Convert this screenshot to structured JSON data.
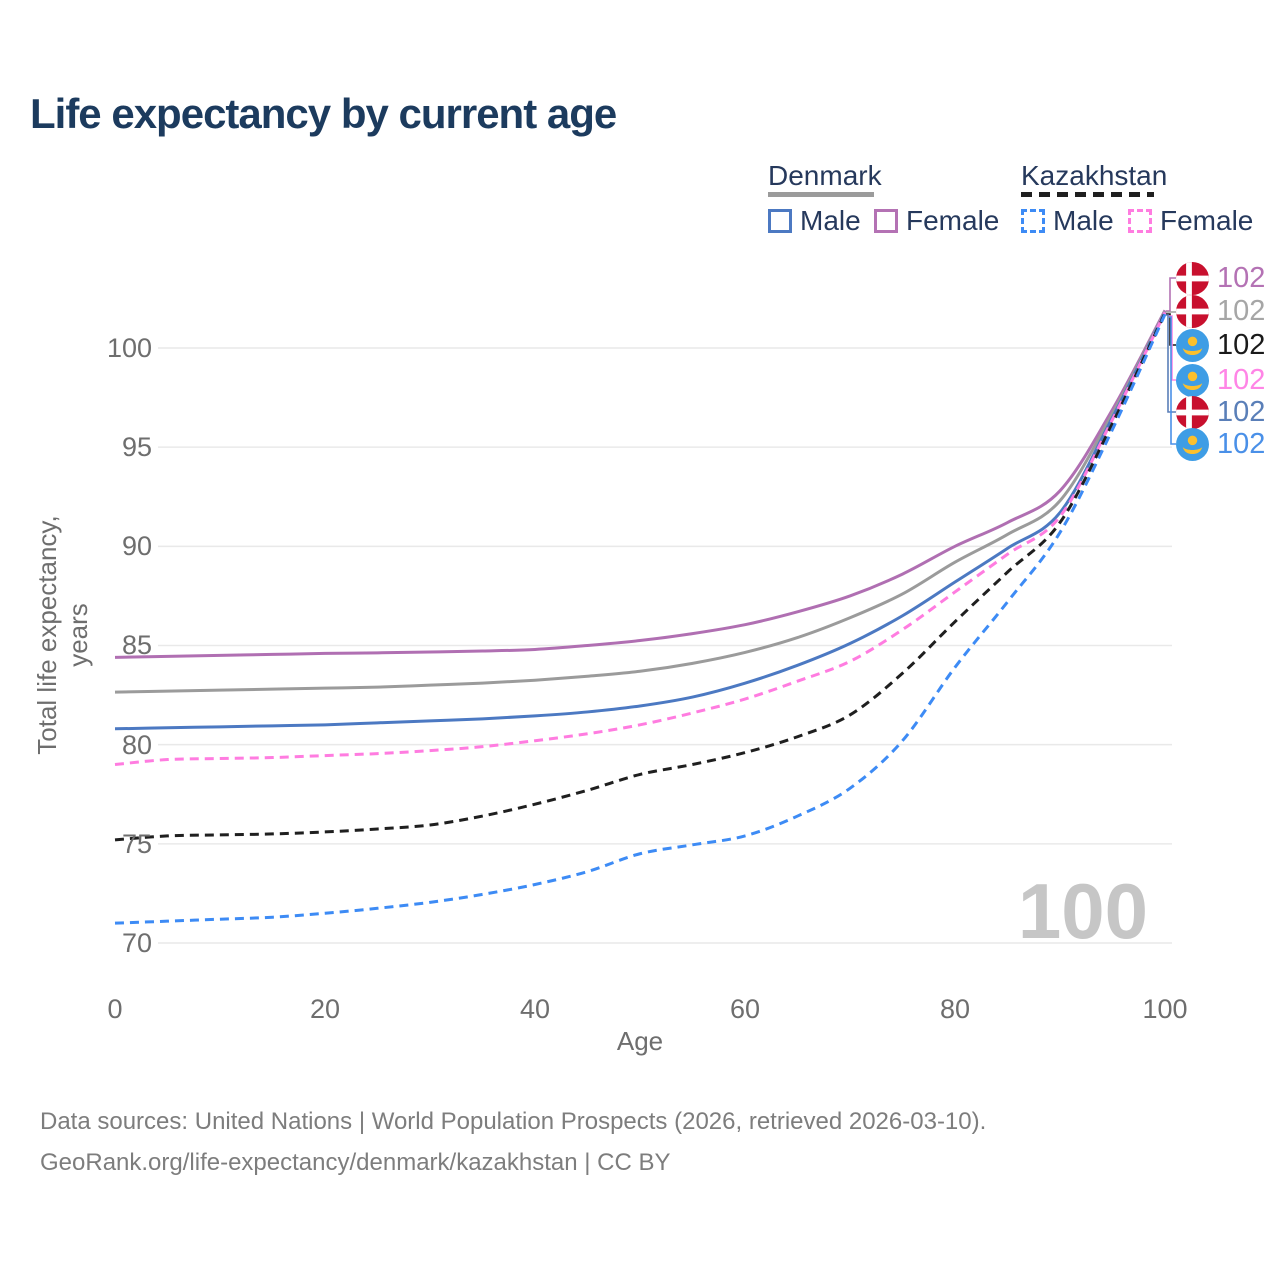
{
  "title": "Life expectancy by current age",
  "legend": {
    "groups": [
      {
        "label": "Denmark",
        "line_style": "solid",
        "line_color": "#9b9b9b",
        "items": [
          {
            "label": "Male",
            "color": "#4c79c2",
            "dashed": false
          },
          {
            "label": "Female",
            "color": "#b472b4",
            "dashed": false
          }
        ]
      },
      {
        "label": "Kazakhstan",
        "line_style": "dashed",
        "line_color": "#1f1f1f",
        "items": [
          {
            "label": "Male",
            "color": "#3d8bf5",
            "dashed": true
          },
          {
            "label": "Female",
            "color": "#ff7ce0",
            "dashed": true
          }
        ]
      }
    ]
  },
  "chart_data": {
    "type": "line",
    "title": "Life expectancy by current age",
    "xlabel": "Age",
    "ylabel": "Total life expectancy, years",
    "x": [
      0,
      5,
      10,
      15,
      20,
      25,
      30,
      35,
      40,
      45,
      50,
      55,
      60,
      65,
      70,
      75,
      80,
      85,
      90,
      95,
      100
    ],
    "xticks": [
      0,
      20,
      40,
      60,
      80,
      100
    ],
    "yticks": [
      70,
      75,
      80,
      85,
      90,
      95,
      100
    ],
    "xlim": [
      0,
      100
    ],
    "ylim": [
      68.5,
      103.5
    ],
    "grid": "horizontal",
    "legend_position": "top-right",
    "series": [
      {
        "name": "Denmark Female",
        "color": "#b06fb2",
        "dashed": false,
        "values": [
          84.4,
          84.45,
          84.5,
          84.55,
          84.6,
          84.63,
          84.67,
          84.72,
          84.8,
          85.0,
          85.25,
          85.6,
          86.05,
          86.7,
          87.5,
          88.6,
          90.0,
          91.2,
          92.8,
          96.9,
          101.9
        ]
      },
      {
        "name": "Denmark Both sexes",
        "color": "#9b9b9b",
        "dashed": false,
        "values": [
          82.65,
          82.7,
          82.75,
          82.8,
          82.85,
          82.9,
          83.0,
          83.1,
          83.25,
          83.45,
          83.7,
          84.1,
          84.65,
          85.4,
          86.4,
          87.6,
          89.2,
          90.6,
          92.3,
          96.7,
          101.85
        ]
      },
      {
        "name": "Denmark Male",
        "color": "#4c79c2",
        "dashed": false,
        "values": [
          80.8,
          80.85,
          80.9,
          80.95,
          81.0,
          81.1,
          81.2,
          81.3,
          81.45,
          81.65,
          81.95,
          82.4,
          83.1,
          84.0,
          85.1,
          86.5,
          88.2,
          89.9,
          91.7,
          96.5,
          101.8
        ]
      },
      {
        "name": "Kazakhstan Female",
        "color": "#ff7ce0",
        "dashed": true,
        "values": [
          79.0,
          79.25,
          79.3,
          79.35,
          79.45,
          79.55,
          79.7,
          79.9,
          80.2,
          80.55,
          81.0,
          81.6,
          82.3,
          83.2,
          84.2,
          85.8,
          87.7,
          89.6,
          91.5,
          96.4,
          101.8
        ]
      },
      {
        "name": "Kazakhstan Both sexes",
        "color": "#1f1f1f",
        "dashed": true,
        "values": [
          75.2,
          75.4,
          75.45,
          75.5,
          75.6,
          75.75,
          75.95,
          76.4,
          77.0,
          77.7,
          78.5,
          79.0,
          79.6,
          80.4,
          81.5,
          83.6,
          86.2,
          88.7,
          91.2,
          96.2,
          101.75
        ]
      },
      {
        "name": "Kazakhstan Male",
        "color": "#3d8bf5",
        "dashed": true,
        "values": [
          71.0,
          71.1,
          71.2,
          71.3,
          71.5,
          71.75,
          72.05,
          72.45,
          72.95,
          73.6,
          74.5,
          74.95,
          75.4,
          76.4,
          77.8,
          80.2,
          83.9,
          87.2,
          90.7,
          95.9,
          101.7
        ]
      }
    ]
  },
  "end_labels": [
    {
      "flag": "denmark",
      "value": "102",
      "color": "#b472b4"
    },
    {
      "flag": "denmark",
      "value": "102",
      "color": "#a6a6a6"
    },
    {
      "flag": "kazakhstan",
      "value": "102",
      "color": "#1a1a1a"
    },
    {
      "flag": "kazakhstan",
      "value": "102",
      "color": "#ff85e6"
    },
    {
      "flag": "denmark",
      "value": "102",
      "color": "#5a7fb8"
    },
    {
      "flag": "kazakhstan",
      "value": "102",
      "color": "#4a90e8"
    }
  ],
  "watermark": "100",
  "footer": {
    "line1": "Data sources: United Nations | World Population Prospects (2026, retrieved 2026-03-10).",
    "line2": "GeoRank.org/life-expectancy/denmark/kazakhstan | CC BY"
  }
}
